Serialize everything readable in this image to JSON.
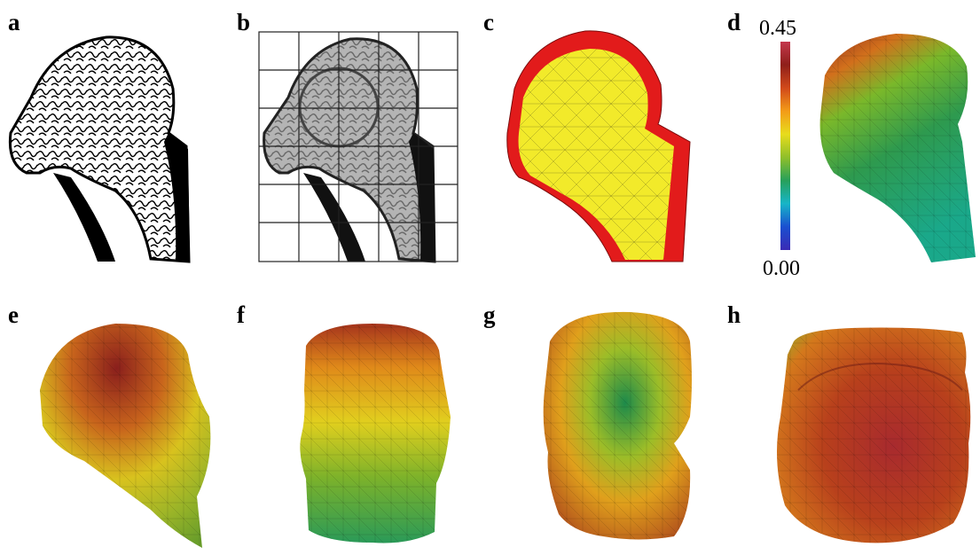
{
  "panels": {
    "a": {
      "letter": "a"
    },
    "b": {
      "letter": "b"
    },
    "c": {
      "letter": "c"
    },
    "d": {
      "letter": "d"
    },
    "e": {
      "letter": "e"
    },
    "f": {
      "letter": "f"
    },
    "g": {
      "letter": "g"
    },
    "h": {
      "letter": "h"
    }
  },
  "colorbar": {
    "max_label": "0.45",
    "min_label": "0.00",
    "max_value": 0.45,
    "min_value": 0.0,
    "stops": [
      "#3a2bb5",
      "#1a4fd0",
      "#17b5c8",
      "#27a05a",
      "#8fbf2a",
      "#e8dc1c",
      "#f39b18",
      "#d1491a",
      "#8f1f1a",
      "#c4384d"
    ]
  },
  "colors": {
    "mesh_yellow": "#f2ea2a",
    "mesh_red": "#e21b1b",
    "bone_gray": "#b4b4b4",
    "cortex_black": "#111111"
  }
}
